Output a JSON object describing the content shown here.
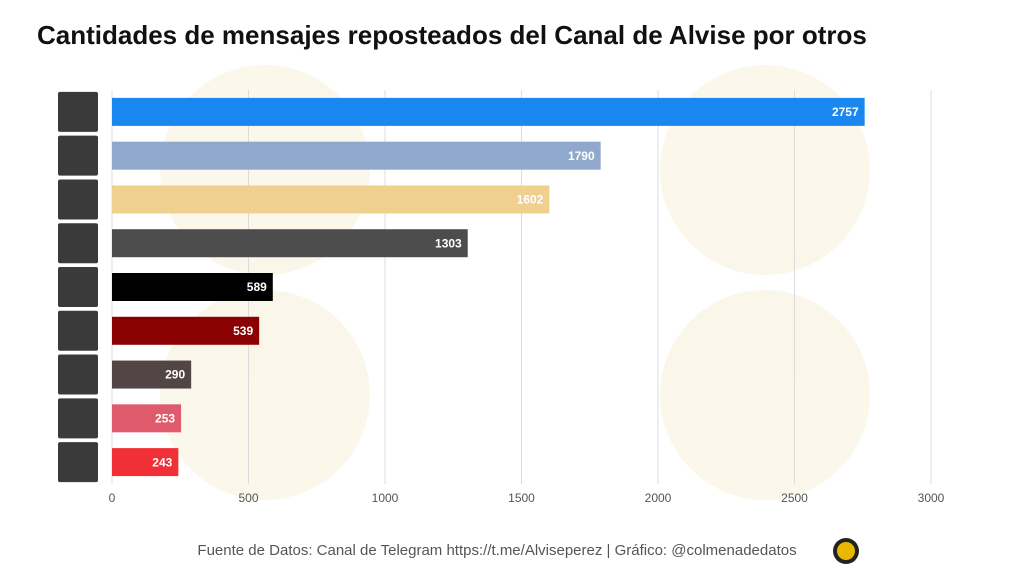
{
  "chart_data": {
    "type": "bar",
    "orientation": "horizontal",
    "title": "Cantidades de mensajes reposteados del Canal de Alvise por otros",
    "categories": [
      null,
      null,
      null,
      null,
      null,
      null,
      null,
      null,
      null
    ],
    "values": [
      2757,
      1790,
      1602,
      1303,
      589,
      539,
      290,
      253,
      243
    ],
    "colors": [
      "#1a86f0",
      "#8fa8cc",
      "#f0d08f",
      "#4d4d4d",
      "#000000",
      "#8b0000",
      "#524545",
      "#e05a6e",
      "#f03036"
    ],
    "xlim": [
      0,
      3000
    ],
    "xticks": [
      0,
      500,
      1000,
      1500,
      2000,
      2500,
      3000
    ],
    "grid": true,
    "footer": "Fuente de Datos: Canal de Telegram https://t.me/Alviseperez | Gráfico: @colmenadedatos"
  }
}
